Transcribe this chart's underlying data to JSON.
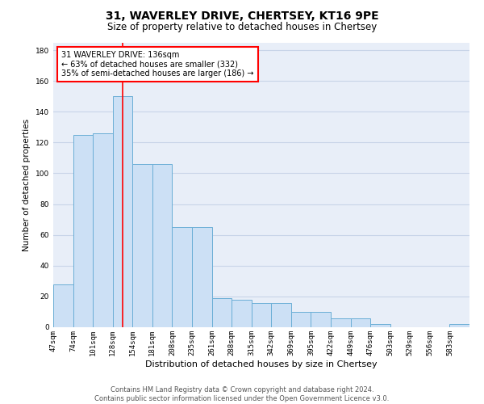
{
  "title": "31, WAVERLEY DRIVE, CHERTSEY, KT16 9PE",
  "subtitle": "Size of property relative to detached houses in Chertsey",
  "xlabel": "Distribution of detached houses by size in Chertsey",
  "ylabel": "Number of detached properties",
  "footer": "Contains HM Land Registry data © Crown copyright and database right 2024.\nContains public sector information licensed under the Open Government Licence v3.0.",
  "bin_labels": [
    "47sqm",
    "74sqm",
    "101sqm",
    "128sqm",
    "154sqm",
    "181sqm",
    "208sqm",
    "235sqm",
    "261sqm",
    "288sqm",
    "315sqm",
    "342sqm",
    "369sqm",
    "395sqm",
    "422sqm",
    "449sqm",
    "476sqm",
    "503sqm",
    "529sqm",
    "556sqm",
    "583sqm"
  ],
  "bar_heights": [
    28,
    125,
    126,
    150,
    106,
    106,
    65,
    65,
    19,
    18,
    16,
    16,
    10,
    10,
    6,
    6,
    2,
    0,
    0,
    0,
    2
  ],
  "bar_color": "#cce0f5",
  "bar_edge_color": "#6aaed6",
  "red_line_x": 3.5,
  "annotation_text": "31 WAVERLEY DRIVE: 136sqm\n← 63% of detached houses are smaller (332)\n35% of semi-detached houses are larger (186) →",
  "ylim": [
    0,
    185
  ],
  "yticks": [
    0,
    20,
    40,
    60,
    80,
    100,
    120,
    140,
    160,
    180
  ],
  "grid_color": "#c8d4e8",
  "bg_color": "#e8eef8",
  "title_fontsize": 10,
  "subtitle_fontsize": 8.5,
  "ylabel_fontsize": 7.5,
  "xlabel_fontsize": 8,
  "tick_fontsize": 6.5,
  "footer_fontsize": 6,
  "annotation_fontsize": 7
}
